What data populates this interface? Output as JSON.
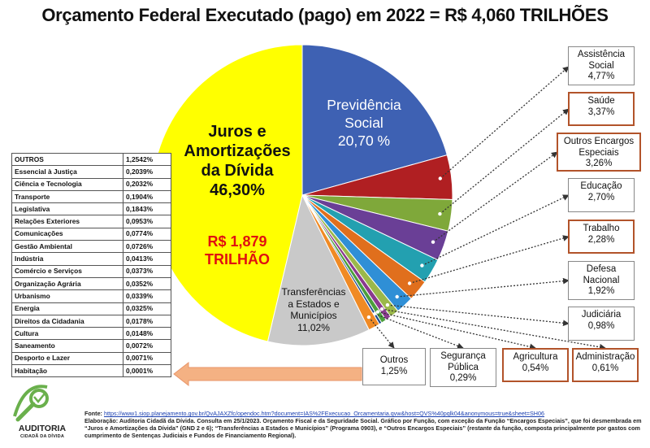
{
  "title": "Orçamento Federal Executado (pago) em 2022 = R$ 4,060 TRILHÕES",
  "chart_data": {
    "type": "pie",
    "title": "Orçamento Federal Executado (pago) em 2022 = R$ 4,060 TRILHÕES",
    "slices": [
      {
        "name": "Previdência Social",
        "label": "Previdência Social",
        "value": 20.7,
        "value_text": "20,70 %",
        "color": "#3e61b3"
      },
      {
        "name": "Assistência Social",
        "label": "Assistência Social",
        "value": 4.77,
        "value_text": "4,77%",
        "color": "#b01f22"
      },
      {
        "name": "Saúde",
        "label": "Saúde",
        "value": 3.37,
        "value_text": "3,37%",
        "color": "#7fa83a"
      },
      {
        "name": "Outros Encargos Especiais",
        "label": "Outros Encargos Especiais",
        "value": 3.26,
        "value_text": "3,26%",
        "color": "#6a3f96"
      },
      {
        "name": "Educação",
        "label": "Educação",
        "value": 2.7,
        "value_text": "2,70%",
        "color": "#23a0b0"
      },
      {
        "name": "Trabalho",
        "label": "Trabalho",
        "value": 2.28,
        "value_text": "2,28%",
        "color": "#e06f1d"
      },
      {
        "name": "Defesa Nacional",
        "label": "Defesa Nacional",
        "value": 1.92,
        "value_text": "1,92%",
        "color": "#2f8fd6"
      },
      {
        "name": "Judiciária",
        "label": "Judiciária",
        "value": 0.98,
        "value_text": "0,98%",
        "color": "#9bb84a"
      },
      {
        "name": "Administração",
        "label": "Administração",
        "value": 0.61,
        "value_text": "0,61%",
        "color": "#8a3a8e"
      },
      {
        "name": "Agricultura",
        "label": "Agricultura",
        "value": 0.54,
        "value_text": "0,54%",
        "color": "#4a9f3a"
      },
      {
        "name": "Segurança Pública",
        "label": "Segurança Pública",
        "value": 0.29,
        "value_text": "0,29%",
        "color": "#1e4b8f"
      },
      {
        "name": "Outros",
        "label": "Outros",
        "value": 1.25,
        "value_text": "1,25%",
        "color": "#f08a24"
      },
      {
        "name": "Transferências a Estados e Municípios",
        "label": "Transferências a Estados e Municípios",
        "value": 11.02,
        "value_text": "11,02%",
        "color": "#c9c9c9"
      },
      {
        "name": "Juros e Amortizações da Dívida",
        "label": "Juros e Amortizações da Dívida",
        "value": 46.3,
        "value_text": "46,30%",
        "color": "#ffff00"
      }
    ],
    "annotation": "R$ 1,879 TRILHÃO"
  },
  "pie_labels": {
    "previdencia_1": "Previdência",
    "previdencia_2": "Social",
    "previdencia_v": "20,70 %",
    "juros_1": "Juros e",
    "juros_2": "Amortizações",
    "juros_3": "da Dívida",
    "juros_v": "46,30%",
    "juros_amt_1": "R$ 1,879",
    "juros_amt_2": "TRILHÃO",
    "transf_1": "Transferências",
    "transf_2": "a Estados e",
    "transf_3": "Municípios",
    "transf_v": "11,02%"
  },
  "boxes": [
    {
      "l1": "Assistência",
      "l2": "Social",
      "v": "4,77%"
    },
    {
      "l1": "Saúde",
      "l2": "",
      "v": "3,37%"
    },
    {
      "l1": "Outros Encargos",
      "l2": "Especiais",
      "v": "3,26%"
    },
    {
      "l1": "Educação",
      "l2": "",
      "v": "2,70%"
    },
    {
      "l1": "Trabalho",
      "l2": "",
      "v": "2,28%"
    },
    {
      "l1": "Defesa",
      "l2": "Nacional",
      "v": "1,92%"
    },
    {
      "l1": "Judiciária",
      "l2": "",
      "v": "0,98%"
    },
    {
      "l1": "Administração",
      "l2": "",
      "v": "0,61%"
    },
    {
      "l1": "Agricultura",
      "l2": "",
      "v": "0,54%"
    },
    {
      "l1": "Segurança",
      "l2": "Pública",
      "v": "0,29%"
    },
    {
      "l1": "Outros",
      "l2": "",
      "v": "1,25%"
    }
  ],
  "outros_table": {
    "header": [
      "OUTROS",
      "1,2542%"
    ],
    "rows": [
      [
        "Essencial à Justiça",
        "0,2039%"
      ],
      [
        "Ciência e Tecnologia",
        "0,2032%"
      ],
      [
        "Transporte",
        "0,1904%"
      ],
      [
        "Legislativa",
        "0,1843%"
      ],
      [
        "Relações Exteriores",
        "0,0953%"
      ],
      [
        "Comunicações",
        "0,0774%"
      ],
      [
        "Gestão Ambiental",
        "0,0726%"
      ],
      [
        "Indústria",
        "0,0413%"
      ],
      [
        "Comércio e Serviços",
        "0,0373%"
      ],
      [
        "Organização Agrária",
        "0,0352%"
      ],
      [
        "Urbanismo",
        "0,0339%"
      ],
      [
        "Energia",
        "0,0325%"
      ],
      [
        "Direitos da Cidadania",
        "0,0178%"
      ],
      [
        "Cultura",
        "0,0148%"
      ],
      [
        "Saneamento",
        "0,0072%"
      ],
      [
        "Desporto e Lazer",
        "0,0071%"
      ],
      [
        "Habitação",
        "0,0001%"
      ]
    ]
  },
  "footer": {
    "fonte_label": "Fonte:",
    "fonte_url": "https://www1.siop.planejamento.gov.br/QvAJAXZfc/opendoc.htm?document=IAS%2FExecucao_Orcamentaria.qvw&host=QVS%40pqlk04&anonymous=true&sheet=SH06",
    "note": "Elaboração: Auditoria Cidadã da Dívida. Consulta em 25/1/2023. Orçamento Fiscal e da Seguridade Social. Gráfico por Função, com exceção da Função “Encargos Especiais”, que foi desmembrada em “Juros e Amortizações da Dívida” (GND 2 e 6); “Transferências a Estados e Municípios” (Programa 0903), e “Outros Encargos Especiais” (restante da função, composta principalmente por gastos com cumprimento de Sentenças Judiciais e Fundos de Financiamento Regional)."
  },
  "logo": {
    "name": "AUDITORIA",
    "sub": "CIDADÃ DA DÍVIDA"
  }
}
